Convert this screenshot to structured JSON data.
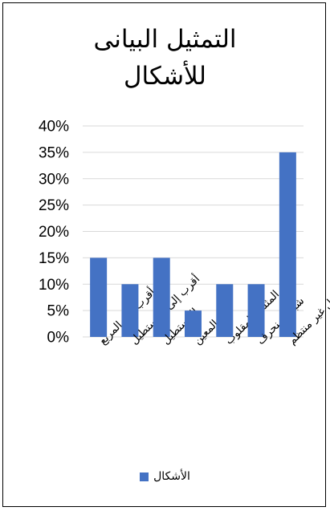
{
  "chart_data": {
    "type": "bar",
    "title": "التمثيل البيانى للأشكال",
    "title_lines": [
      "التمثيل البيانى",
      "للأشكال"
    ],
    "categories": [
      "أقرب إلى المربع",
      "أقرب إلى المستطيل",
      "المستطيل",
      "المعين",
      "المثلث المقلوب",
      "شبه المنحرف",
      "شكل غير منتظم"
    ],
    "series": [
      {
        "name": "الأشكال",
        "values": [
          15,
          10,
          15,
          5,
          10,
          10,
          35
        ]
      }
    ],
    "ylim": [
      0,
      40
    ],
    "yticks": [
      "0%",
      "5%",
      "10%",
      "15%",
      "20%",
      "25%",
      "30%",
      "35%",
      "40%"
    ],
    "grid": true,
    "legend": "bottom",
    "bar_color": "#4472C4",
    "grid_color": "#D9D9D9"
  }
}
